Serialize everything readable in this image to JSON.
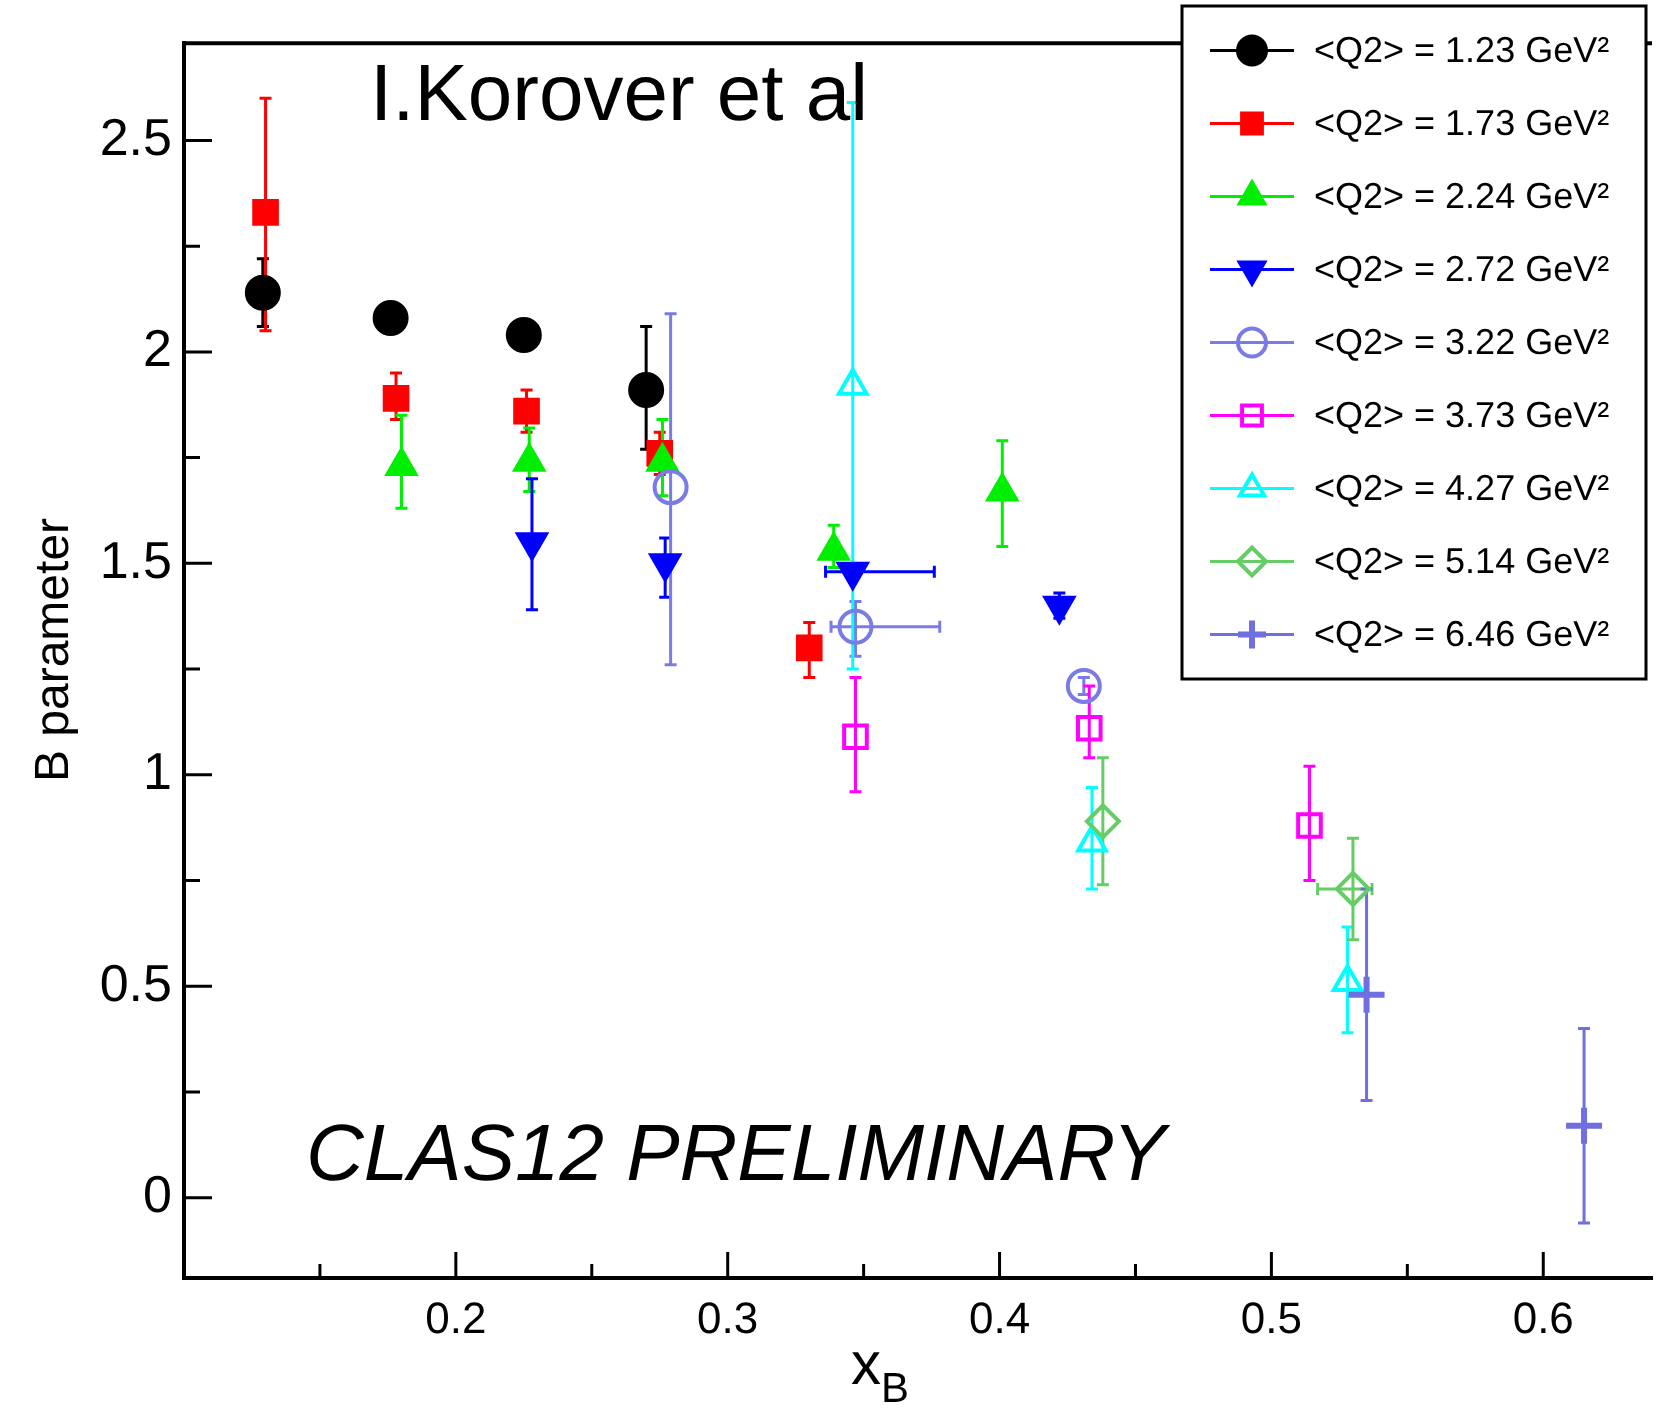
{
  "chart_data": {
    "type": "scatter",
    "xlabel": "x$_{B}$",
    "ylabel": "B parameter",
    "annotations": [
      "I.Korover et al",
      "CLAS12 PRELIMINARY"
    ],
    "xlim": [
      0.1,
      0.64
    ],
    "ylim": [
      -0.19,
      2.73
    ],
    "xticks": [
      {
        "value": 0.15,
        "label": null
      },
      0.2,
      {
        "value": 0.25,
        "label": null
      },
      0.3,
      {
        "value": 0.35,
        "label": null
      },
      0.4,
      {
        "value": 0.45,
        "label": null
      },
      0.5,
      {
        "value": 0.55,
        "label": null
      },
      0.6
    ],
    "yticks": [
      0,
      {
        "value": 0.25,
        "label": null
      },
      0.5,
      {
        "value": 0.75,
        "label": null
      },
      1,
      {
        "value": 1.25,
        "label": null
      },
      1.5,
      {
        "value": 1.75,
        "label": null
      },
      2,
      {
        "value": 2.25,
        "label": null
      },
      2.5
    ],
    "grid": false,
    "legend": "top right",
    "series": [
      {
        "name": "<Q2> = 1.23 GeV²",
        "color": "#000000",
        "marker": "circle",
        "x": [
          0.129,
          0.176,
          0.225,
          0.27
        ],
        "values": [
          2.14,
          2.08,
          2.04,
          1.91
        ],
        "errors": [
          [
            2.06,
            2.22
          ],
          null,
          null,
          [
            1.77,
            2.06
          ]
        ]
      },
      {
        "name": "<Q2> = 1.73 GeV²",
        "color": "#ff0000",
        "marker": "square",
        "x": [
          0.13,
          0.178,
          0.226,
          0.275,
          0.33
        ],
        "values": [
          2.33,
          1.89,
          1.86,
          1.76,
          1.3
        ],
        "errors": [
          [
            2.05,
            2.6
          ],
          [
            1.84,
            1.95
          ],
          [
            1.81,
            1.91
          ],
          [
            1.71,
            1.81
          ],
          [
            1.23,
            1.36
          ]
        ]
      },
      {
        "name": "<Q2> = 2.24 GeV²",
        "color": "#00ee00",
        "marker": "triangle",
        "x": [
          0.18,
          0.227,
          0.276,
          0.339,
          0.401
        ],
        "values": [
          1.73,
          1.74,
          1.74,
          1.53,
          1.67
        ],
        "errors": [
          [
            1.63,
            1.85
          ],
          [
            1.67,
            1.82
          ],
          [
            1.66,
            1.84
          ],
          [
            1.49,
            1.59
          ],
          [
            1.54,
            1.79
          ]
        ]
      },
      {
        "name": "<Q2> = 2.72 GeV²",
        "color": "#0000ff",
        "marker": "triangle-down",
        "x": [
          0.228,
          0.277,
          0.346,
          0.422
        ],
        "values": [
          1.55,
          1.5,
          1.48,
          1.4
        ],
        "errors": [
          [
            1.39,
            1.7
          ],
          [
            1.42,
            1.56
          ],
          null,
          [
            1.37,
            1.43
          ]
        ],
        "xerrors": [
          null,
          null,
          [
            0.336,
            0.376
          ],
          null
        ]
      },
      {
        "name": "<Q2> = 3.22 GeV²",
        "color": "#7b7be6",
        "marker": "circle-open",
        "x": [
          0.279,
          0.347,
          0.431
        ],
        "values": [
          1.68,
          1.35,
          1.21
        ],
        "errors": [
          [
            1.26,
            2.09
          ],
          [
            1.28,
            1.41
          ],
          [
            1.19,
            1.23
          ]
        ],
        "xerrors": [
          null,
          [
            0.338,
            0.378
          ],
          null
        ]
      },
      {
        "name": "<Q2> = 3.73 GeV²",
        "color": "#ff00ff",
        "marker": "square-open",
        "x": [
          0.347,
          0.433,
          0.514
        ],
        "values": [
          1.09,
          1.11,
          0.88
        ],
        "errors": [
          [
            0.96,
            1.23
          ],
          [
            1.04,
            1.21
          ],
          [
            0.75,
            1.02
          ]
        ]
      },
      {
        "name": "<Q2> = 4.27 GeV²",
        "color": "#00ffff",
        "marker": "triangle-open",
        "x": [
          0.346,
          0.434,
          0.528
        ],
        "values": [
          1.92,
          0.84,
          0.51
        ],
        "errors": [
          [
            1.25,
            2.59
          ],
          [
            0.73,
            0.97
          ],
          [
            0.39,
            0.64
          ]
        ]
      },
      {
        "name": "<Q2> = 5.14 GeV²",
        "color": "#66cc66",
        "marker": "diamond-open",
        "x": [
          0.438,
          0.53
        ],
        "values": [
          0.89,
          0.73
        ],
        "errors": [
          [
            0.74,
            1.04
          ],
          [
            0.61,
            0.85
          ]
        ],
        "xerrors": [
          null,
          [
            0.517,
            0.537
          ]
        ]
      },
      {
        "name": "<Q2> = 6.46 GeV²",
        "color": "#6f6fdf",
        "marker": "cross-open",
        "x": [
          0.535,
          0.615
        ],
        "values": [
          0.48,
          0.17
        ],
        "errors": [
          [
            0.23,
            0.73
          ],
          [
            -0.06,
            0.4
          ]
        ]
      }
    ]
  }
}
